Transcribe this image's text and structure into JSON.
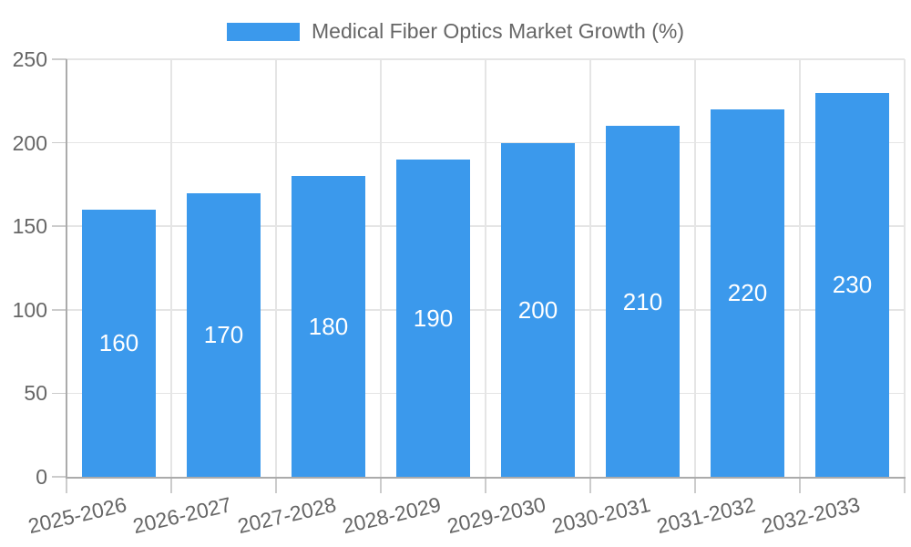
{
  "chart_data": {
    "type": "bar",
    "title": "Medical Fiber Optics Market Growth (%)",
    "categories": [
      "2025-2026",
      "2026-2027",
      "2027-2028",
      "2028-2029",
      "2029-2030",
      "2030-2031",
      "2031-2032",
      "2032-2033"
    ],
    "values": [
      160,
      170,
      180,
      190,
      200,
      210,
      220,
      230
    ],
    "yticks": [
      0,
      50,
      100,
      150,
      200,
      250
    ],
    "ylim": [
      0,
      250
    ],
    "xlabel": "",
    "ylabel": "",
    "grid": true,
    "legend_position": "top-center",
    "bar_color": "#3B99EC",
    "value_label_color": "#ffffff",
    "axis_text_color": "#666666",
    "gridline_color": "#e5e5e5",
    "axis_line_color": "#ababab"
  }
}
